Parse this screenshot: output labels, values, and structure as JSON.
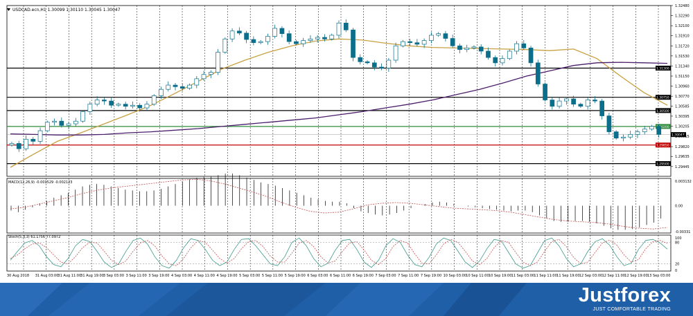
{
  "symbol_header": "USDCAD.ecn,H1  1.30099 1.30110 1.30045 1.30047",
  "macd_header": "MACD(12,26,9) -0.001529 -0.002123",
  "stoch_header": "Stoch(5,3,3) 61.1756 77.0972",
  "brand": {
    "name": "Justforex",
    "slogan": "JUST COMFORTABLE TRADING"
  },
  "colors": {
    "background": "#ffffff",
    "grid": "#000000",
    "candle": "#0b6e8a",
    "ma_fast": "#c8a040",
    "ma_slow": "#4b1c6b",
    "level_support": "#2e8b3a",
    "level_resistance": "#c00000",
    "level_black": "#000000",
    "macd_signal": "#c05050",
    "stoch_main": "#3a9a8a",
    "stoch_signal": "#c05050",
    "footer": "#1f5fa8"
  },
  "chart_data": [
    {
      "type": "candlestick",
      "title": "USDCAD.ecn,H1  1.30099 1.30110 1.30045 1.30047",
      "ylim": [
        1.2926,
        1.3248
      ],
      "y_ticks": [
        "1.32480",
        "1.32290",
        "1.32100",
        "1.31910",
        "1.31720",
        "1.31530",
        "1.31340",
        "1.31150",
        "1.30960",
        "1.30770",
        "1.30585",
        "1.30395",
        "1.30205",
        "1.30015",
        "1.29820",
        "1.29635",
        "1.29445"
      ],
      "x_labels": [
        "30 Aug 2018",
        "31 Aug 03:00",
        "31 Aug 11:00",
        "31 Aug 19:00",
        "3 Sep 03:00",
        "3 Sep 11:00",
        "3 Sep 19:00",
        "4 Sep 03:00",
        "4 Sep 11:00",
        "4 Sep 19:00",
        "5 Sep 03:00",
        "5 Sep 11:00",
        "5 Sep 19:00",
        "6 Sep 03:00",
        "6 Sep 11:00",
        "6 Sep 19:00",
        "7 Sep 03:00",
        "7 Sep 11:00",
        "7 Sep 19:00",
        "10 Sep 03:00",
        "10 Sep 11:00",
        "10 Sep 19:00",
        "11 Sep 03:00",
        "11 Sep 11:00",
        "11 Sep 19:00",
        "12 Sep 03:00",
        "12 Sep 11:00",
        "12 Sep 19:00",
        "13 Sep 03:00"
      ],
      "price_path": [
        1.2988,
        1.2978,
        1.2996,
        1.2992,
        1.3012,
        1.3028,
        1.303,
        1.3022,
        1.3025,
        1.303,
        1.3048,
        1.3062,
        1.307,
        1.3068,
        1.306,
        1.3062,
        1.3058,
        1.306,
        1.3055,
        1.3062,
        1.3078,
        1.309,
        1.3098,
        1.3095,
        1.3092,
        1.3098,
        1.311,
        1.3118,
        1.3122,
        1.316,
        1.3185,
        1.32,
        1.3196,
        1.3184,
        1.3178,
        1.318,
        1.319,
        1.3205,
        1.3195,
        1.318,
        1.3176,
        1.3182,
        1.3185,
        1.3188,
        1.3185,
        1.3192,
        1.3215,
        1.3202,
        1.315,
        1.3142,
        1.314,
        1.3132,
        1.313,
        1.3145,
        1.3172,
        1.318,
        1.3178,
        1.3175,
        1.3182,
        1.3192,
        1.3195,
        1.3186,
        1.3172,
        1.3165,
        1.3168,
        1.317,
        1.3162,
        1.315,
        1.314,
        1.3148,
        1.3162,
        1.3176,
        1.3168,
        1.314,
        1.31,
        1.307,
        1.3058,
        1.3068,
        1.3072,
        1.3062,
        1.3058,
        1.307,
        1.3068,
        1.304,
        1.301,
        1.2998,
        1.3,
        1.3005,
        1.301,
        1.3015,
        1.302,
        1.3005
      ],
      "horizontal_levels": [
        {
          "label": "1.31300",
          "value": 1.313,
          "color": "#000000"
        },
        {
          "label": "1.30750",
          "value": 1.3075,
          "color": "#000000"
        },
        {
          "label": "1.30500",
          "value": 1.305,
          "color": "#000000"
        },
        {
          "label": "1.30200",
          "value": 1.302,
          "color": "#2e8b3a"
        },
        {
          "label": "1.29850",
          "value": 1.2985,
          "color": "#c00000"
        },
        {
          "label": "1.29500",
          "value": 1.295,
          "color": "#000000"
        }
      ],
      "price_tag": {
        "label": "1.30047",
        "value": 1.30047
      },
      "series": [
        {
          "name": "MA fast",
          "color": "#c8a040",
          "points": [
            1.2943,
            1.2968,
            1.2992,
            1.3008,
            1.3025,
            1.3042,
            1.306,
            1.3082,
            1.3105,
            1.3128,
            1.3145,
            1.316,
            1.3172,
            1.3181,
            1.3185,
            1.3183,
            1.3177,
            1.3172,
            1.3169,
            1.3168,
            1.3167,
            1.3166,
            1.3165,
            1.3163,
            1.3166,
            1.3148,
            1.3115,
            1.3084,
            1.306
          ]
        },
        {
          "name": "MA slow",
          "color": "#4b1c6b",
          "points": [
            1.3006,
            1.3005,
            1.3004,
            1.3004,
            1.3005,
            1.3008,
            1.301,
            1.3013,
            1.3016,
            1.302,
            1.3024,
            1.3028,
            1.3032,
            1.3036,
            1.3042,
            1.3048,
            1.3055,
            1.3062,
            1.307,
            1.308,
            1.309,
            1.3102,
            1.3115,
            1.3125,
            1.3135,
            1.314,
            1.3141,
            1.314,
            1.3139
          ]
        }
      ]
    },
    {
      "type": "bar",
      "title": "MACD(12,26,9) -0.001529 -0.002123",
      "ylim": [
        -0.0034,
        0.0034
      ],
      "y_ticks": [
        "0.003132",
        "0.00",
        "-0.00331"
      ],
      "histogram": [
        -0.0006,
        -0.0008,
        -0.0005,
        -0.0002,
        0.0003,
        0.0006,
        0.001,
        0.0013,
        0.0016,
        0.002,
        0.0024,
        0.0026,
        0.0027,
        0.0026,
        0.0024,
        0.0022,
        0.002,
        0.0019,
        0.0018,
        0.0018,
        0.0019,
        0.0021,
        0.0024,
        0.0027,
        0.003,
        0.0033,
        0.0035,
        0.0036,
        0.0036,
        0.0038,
        0.004,
        0.004,
        0.0038,
        0.0035,
        0.0032,
        0.0029,
        0.0027,
        0.0025,
        0.0022,
        0.0019,
        0.0016,
        0.0013,
        0.001,
        0.0008,
        0.0006,
        0.0005,
        0.0005,
        0.0003,
        -0.0003,
        -0.0007,
        -0.0009,
        -0.0011,
        -0.0012,
        -0.0011,
        -0.0009,
        -0.0006,
        -0.0003,
        0.0,
        0.0002,
        0.0004,
        0.0005,
        0.0004,
        0.0002,
        0.0,
        -0.0001,
        -0.0002,
        -0.0003,
        -0.0004,
        -0.0005,
        -0.0006,
        -0.0007,
        -0.0006,
        -0.0006,
        -0.0008,
        -0.0012,
        -0.0016,
        -0.0019,
        -0.002,
        -0.002,
        -0.0019,
        -0.0019,
        -0.002,
        -0.0022,
        -0.0025,
        -0.0028,
        -0.003,
        -0.003,
        -0.0029,
        -0.0027,
        -0.0024,
        -0.0021,
        -0.0016
      ],
      "signal": [
        -0.0004,
        -0.0002,
        0.0002,
        0.0006,
        0.001,
        0.0015,
        0.0019,
        0.0022,
        0.0024,
        0.0026,
        0.0028,
        0.003,
        0.0032,
        0.0033,
        0.0031,
        0.0027,
        0.0022,
        0.0017,
        0.0011,
        0.0004,
        -0.0002,
        -0.0007,
        -0.0009,
        -0.0008,
        -0.0004,
        0.0001,
        0.0003,
        0.0004,
        0.0003,
        0.0001,
        -0.0001,
        -0.0003,
        -0.0004,
        -0.0005,
        -0.0006,
        -0.0008,
        -0.0011,
        -0.0014,
        -0.0017,
        -0.0019,
        -0.002,
        -0.0021,
        -0.0023,
        -0.0026,
        -0.0028,
        -0.0029,
        -0.0027
      ]
    },
    {
      "type": "line",
      "title": "Stoch(5,3,3) 61.1756 77.0972",
      "ylim": [
        0,
        100
      ],
      "y_ticks": [
        "100",
        "80",
        "20",
        "0"
      ],
      "series": [
        {
          "name": "main",
          "color": "#3a9a8a",
          "values": [
            30,
            55,
            78,
            85,
            70,
            40,
            18,
            12,
            35,
            70,
            88,
            82,
            55,
            25,
            10,
            20,
            55,
            85,
            92,
            75,
            40,
            15,
            8,
            30,
            65,
            90,
            85,
            60,
            30,
            15,
            25,
            60,
            88,
            90,
            70,
            45,
            20,
            15,
            40,
            80,
            92,
            70,
            35,
            12,
            22,
            58,
            85,
            88,
            60,
            25,
            10,
            30,
            70,
            90,
            80,
            45,
            18,
            12,
            38,
            75,
            92,
            85,
            55,
            25,
            10,
            28,
            62,
            88,
            84,
            52,
            20,
            8,
            15,
            50,
            85,
            92,
            70,
            35,
            12,
            20,
            55,
            82,
            90,
            72,
            40,
            15,
            22,
            60,
            85,
            88,
            78,
            61
          ]
        },
        {
          "name": "signal",
          "color": "#c05050",
          "values": [
            35,
            45,
            62,
            75,
            78,
            65,
            45,
            25,
            20,
            40,
            65,
            80,
            78,
            55,
            30,
            18,
            28,
            55,
            78,
            85,
            70,
            42,
            20,
            15,
            35,
            65,
            85,
            80,
            58,
            35,
            22,
            35,
            62,
            82,
            85,
            68,
            42,
            25,
            25,
            50,
            78,
            85,
            68,
            40,
            22,
            28,
            55,
            78,
            82,
            58,
            30,
            18,
            35,
            68,
            85,
            78,
            48,
            22,
            20,
            45,
            75,
            88,
            80,
            55,
            28,
            18,
            35,
            65,
            85,
            80,
            52,
            25,
            15,
            25,
            55,
            82,
            88,
            68,
            38,
            20,
            25,
            52,
            78,
            86,
            72,
            45,
            25,
            32,
            62,
            82,
            85,
            77
          ]
        }
      ]
    }
  ]
}
